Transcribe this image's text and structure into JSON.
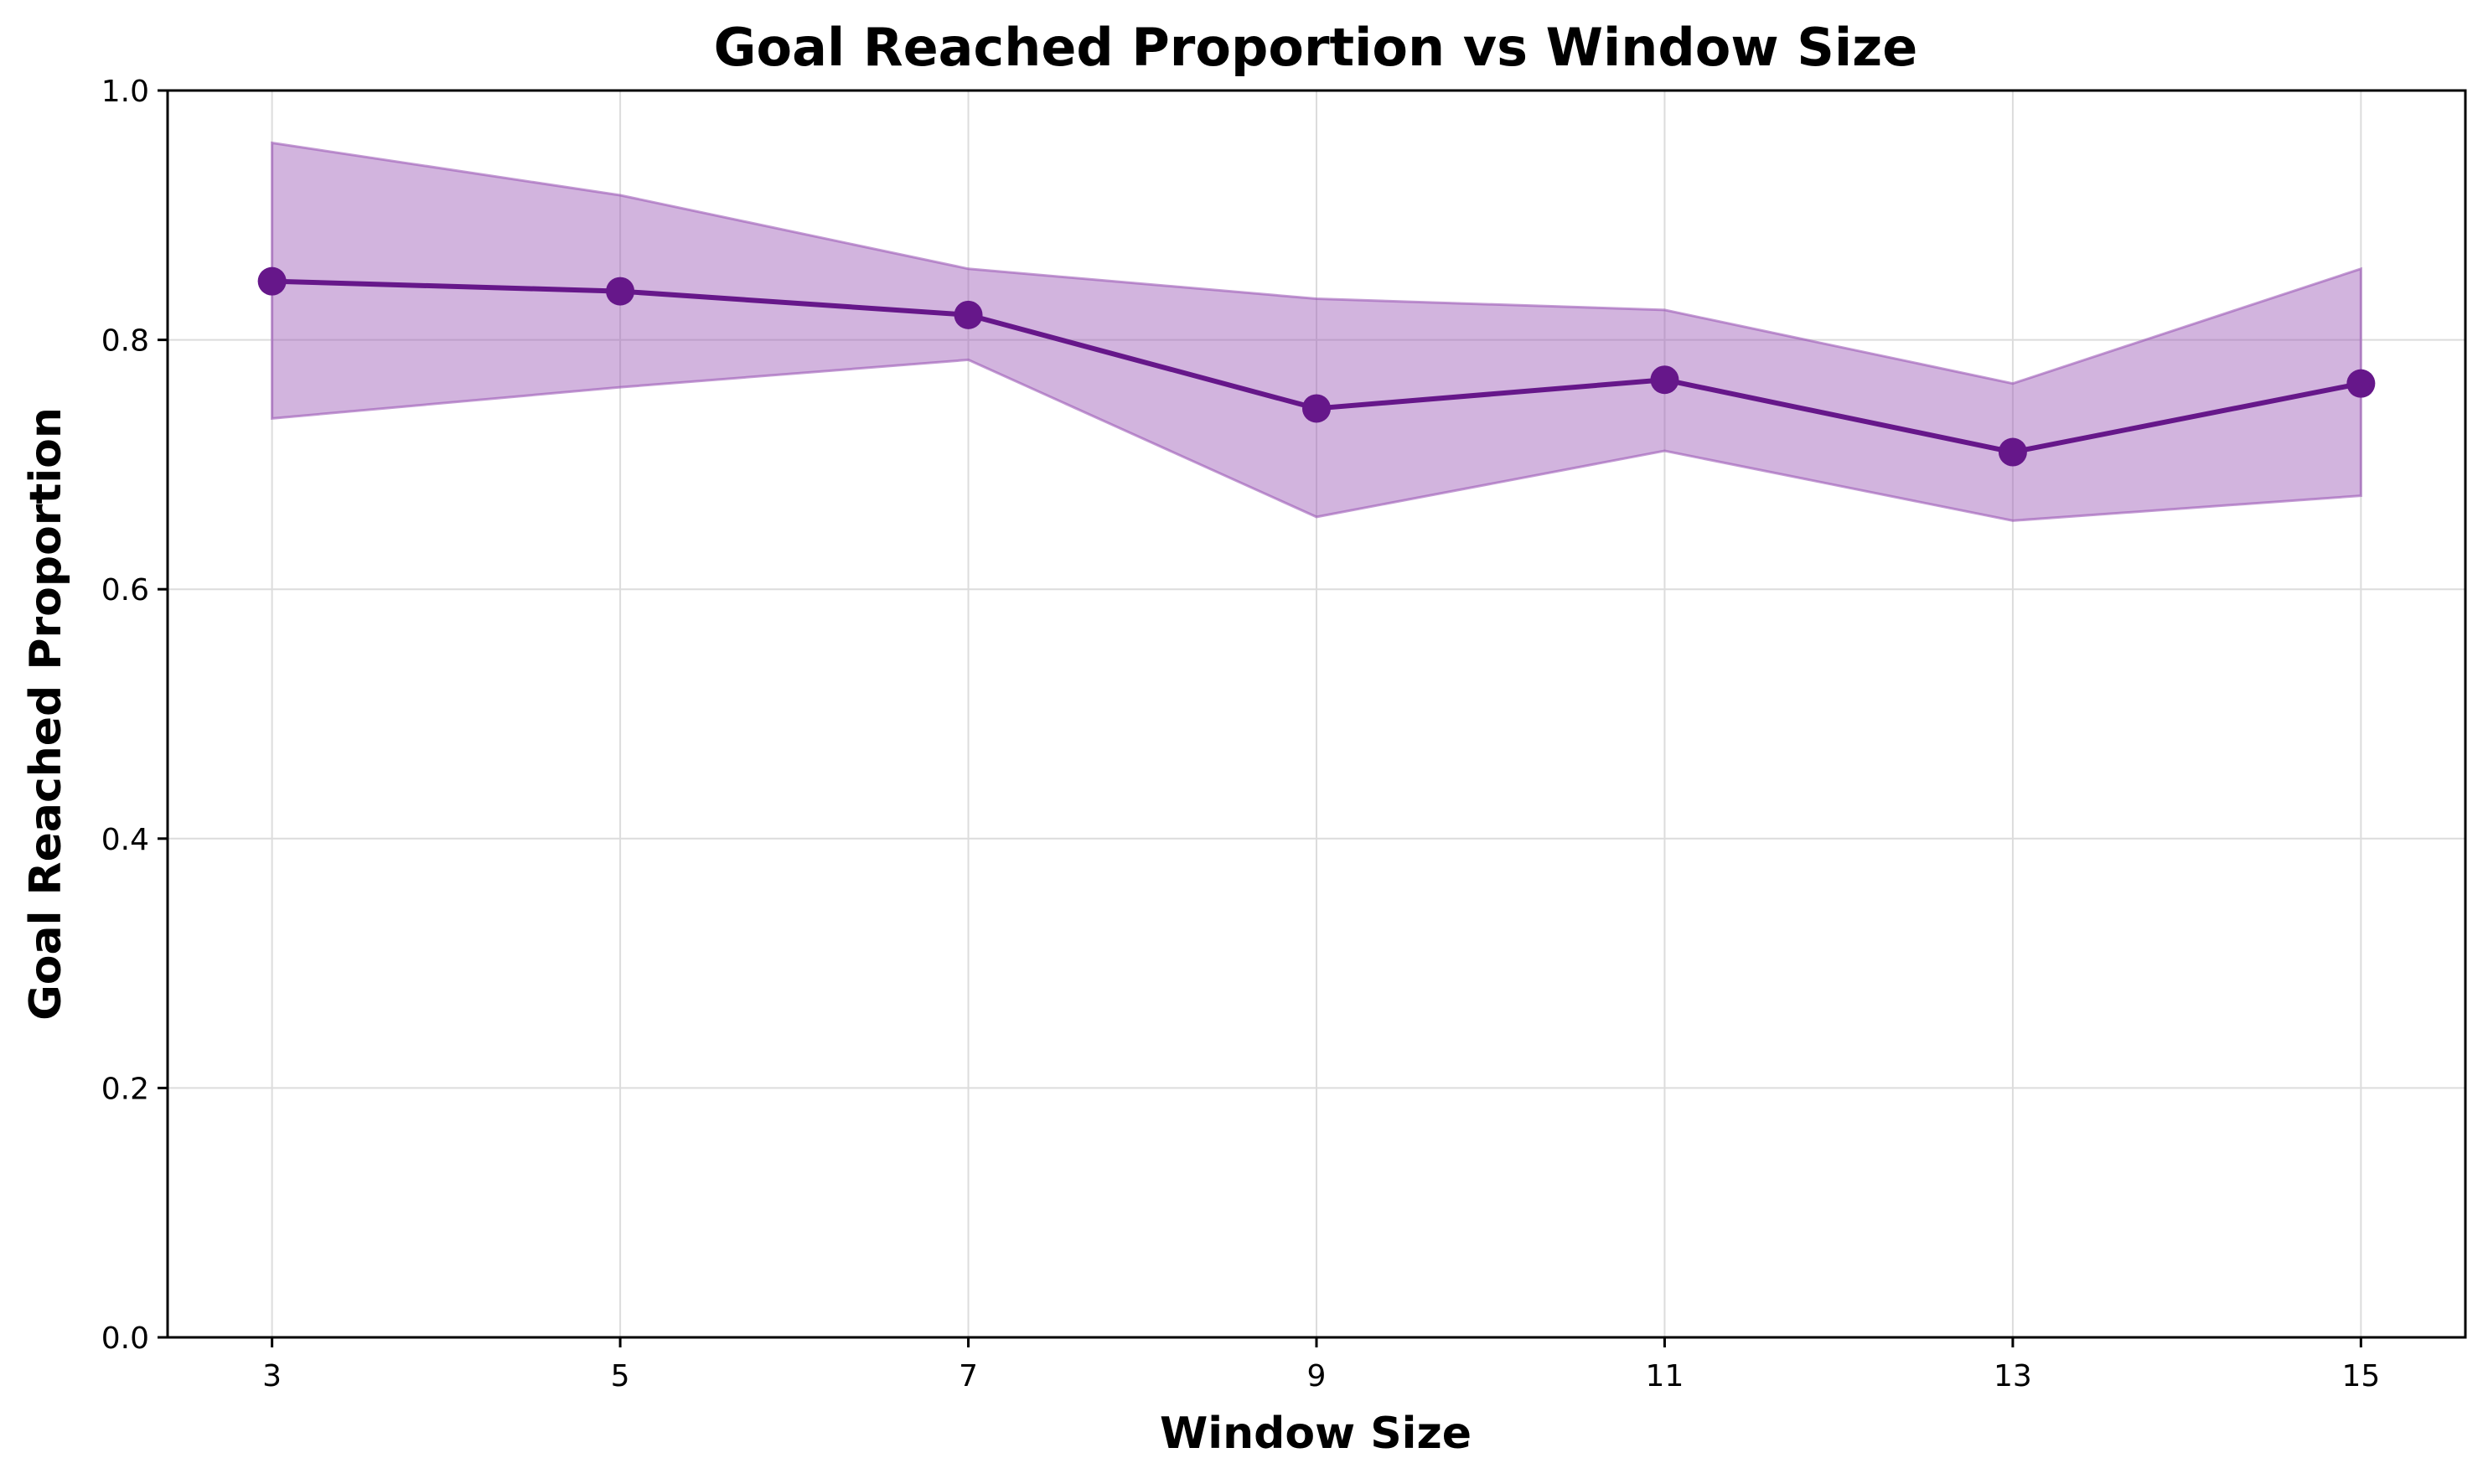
{
  "chart_data": {
    "type": "line",
    "title": "Goal Reached Proportion vs Window Size",
    "xlabel": "Window Size",
    "ylabel": "Goal Reached Proportion",
    "x": [
      3,
      5,
      7,
      9,
      11,
      13,
      15
    ],
    "xticks": [
      "3",
      "5",
      "7",
      "9",
      "11",
      "13",
      "15"
    ],
    "yticks": [
      "0.0",
      "0.2",
      "0.4",
      "0.6",
      "0.8",
      "1.0"
    ],
    "xlim": [
      2.4,
      15.6
    ],
    "ylim": [
      0,
      1
    ],
    "grid": true,
    "series": [
      {
        "values": [
          0.847,
          0.839,
          0.82,
          0.745,
          0.768,
          0.71,
          0.765
        ],
        "lower": [
          0.737,
          0.762,
          0.784,
          0.658,
          0.711,
          0.655,
          0.675
        ],
        "upper": [
          0.958,
          0.916,
          0.857,
          0.833,
          0.824,
          0.765,
          0.857
        ],
        "color": "#66178a",
        "band_color": "#9b59b6"
      }
    ]
  }
}
